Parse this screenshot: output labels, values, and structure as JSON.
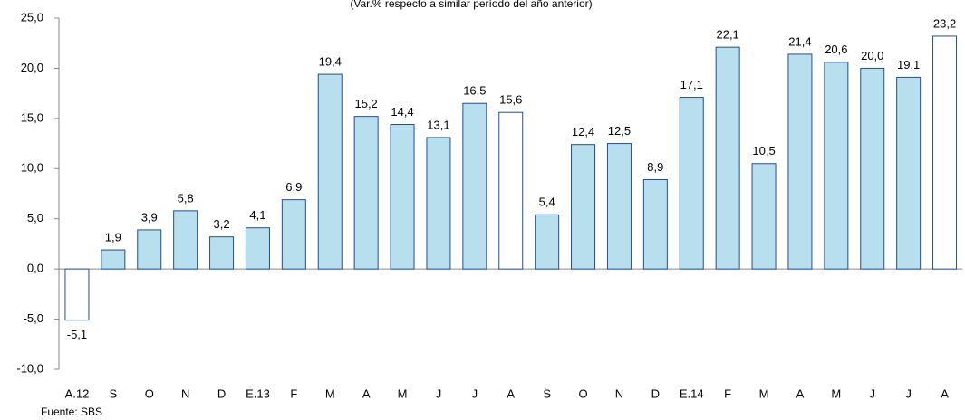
{
  "chart_data": {
    "type": "bar",
    "subtitle": "(Var.% respecto a similar período del año anterior)",
    "source": "Fuente: SBS",
    "categories": [
      "A.12",
      "S",
      "O",
      "N",
      "D",
      "E.13",
      "F",
      "M",
      "A",
      "M",
      "J",
      "J",
      "A",
      "S",
      "O",
      "N",
      "D",
      "E.14",
      "F",
      "M",
      "A",
      "M",
      "J",
      "J",
      "A"
    ],
    "values": [
      -5.1,
      1.9,
      3.9,
      5.8,
      3.2,
      4.1,
      6.9,
      19.4,
      15.2,
      14.4,
      13.1,
      16.5,
      15.6,
      5.4,
      12.4,
      12.5,
      8.9,
      17.1,
      22.1,
      10.5,
      21.4,
      20.6,
      20.0,
      19.1,
      23.2
    ],
    "value_labels": [
      "-5,1",
      "1,9",
      "3,9",
      "5,8",
      "3,2",
      "4,1",
      "6,9",
      "19,4",
      "15,2",
      "14,4",
      "13,1",
      "16,5",
      "15,6",
      "5,4",
      "12,4",
      "12,5",
      "8,9",
      "17,1",
      "22,1",
      "10,5",
      "21,4",
      "20,6",
      "20,0",
      "19,1",
      "23,2"
    ],
    "colors": [
      "#ffffff",
      "#b7dfee",
      "#b7dfee",
      "#b7dfee",
      "#b7dfee",
      "#b7dfee",
      "#b7dfee",
      "#b7dfee",
      "#b7dfee",
      "#b7dfee",
      "#b7dfee",
      "#b7dfee",
      "#ffffff",
      "#b7dfee",
      "#b7dfee",
      "#b7dfee",
      "#b7dfee",
      "#b7dfee",
      "#b7dfee",
      "#b7dfee",
      "#b7dfee",
      "#b7dfee",
      "#b7dfee",
      "#b7dfee",
      "#ffffff"
    ],
    "edge_color": "#1f4e9a",
    "ylim": [
      -10,
      25
    ],
    "yticks": [
      {
        "value": -10,
        "label": "-10,0"
      },
      {
        "value": -5,
        "label": "-5,0"
      },
      {
        "value": 0,
        "label": "0,0"
      },
      {
        "value": 5,
        "label": "5,0"
      },
      {
        "value": 10,
        "label": "10,0"
      },
      {
        "value": 15,
        "label": "15,0"
      },
      {
        "value": 20,
        "label": "20,0"
      },
      {
        "value": 25,
        "label": "25,0"
      }
    ],
    "grid": false
  }
}
